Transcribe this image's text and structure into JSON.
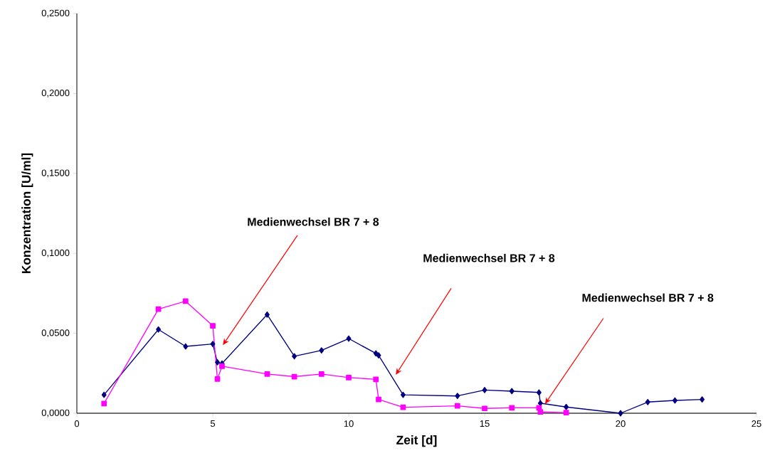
{
  "chart_data": {
    "type": "line",
    "xlabel": "Zeit [d]",
    "ylabel": "Konzentration [U/ml]",
    "xlim": [
      0,
      25
    ],
    "xticks": [
      0,
      5,
      10,
      15,
      20,
      25
    ],
    "ylim": [
      0,
      0.25
    ],
    "yticks": [
      {
        "value": 0,
        "label": "0,0000"
      },
      {
        "value": 0.05,
        "label": "0,0500"
      },
      {
        "value": 0.1,
        "label": "0,1000"
      },
      {
        "value": 0.15,
        "label": "0,1500"
      },
      {
        "value": 0.2,
        "label": "0,2000"
      },
      {
        "value": 0.25,
        "label": "0,2500"
      }
    ],
    "grid": false,
    "line_style": "solid",
    "series": [
      {
        "color": "#000080",
        "marker": "diamond",
        "x": [
          1,
          3,
          4,
          5,
          5.17,
          5.34,
          7,
          8,
          9,
          10,
          11,
          11.1,
          12,
          14,
          15,
          16,
          17,
          17.05,
          18,
          20,
          21,
          22,
          23
        ],
        "values": [
          0.0115,
          0.0524,
          0.0418,
          0.0433,
          0.0319,
          0.0311,
          0.0617,
          0.0356,
          0.0393,
          0.0467,
          0.0374,
          0.0362,
          0.0115,
          0.0108,
          0.0145,
          0.0138,
          0.013,
          0.0063,
          0.0039,
          0.0,
          0.007,
          0.008,
          0.0086
        ]
      },
      {
        "color": "#ff00ff",
        "marker": "square",
        "x": [
          1,
          3,
          4,
          5,
          5.17,
          5.34,
          7,
          8,
          9,
          10,
          11,
          11.1,
          12,
          14,
          15,
          16,
          17,
          17.05,
          18
        ],
        "values": [
          0.0061,
          0.0651,
          0.0701,
          0.0547,
          0.0214,
          0.0294,
          0.0245,
          0.0229,
          0.0245,
          0.0223,
          0.0212,
          0.0086,
          0.0037,
          0.0046,
          0.003,
          0.0034,
          0.0034,
          0.0008,
          0.0004
        ]
      }
    ],
    "annotations": [
      "Medienwechsel BR 7 + 8",
      "Medienwechsel BR 7 + 8",
      "Medienwechsel BR 7 + 8"
    ]
  }
}
